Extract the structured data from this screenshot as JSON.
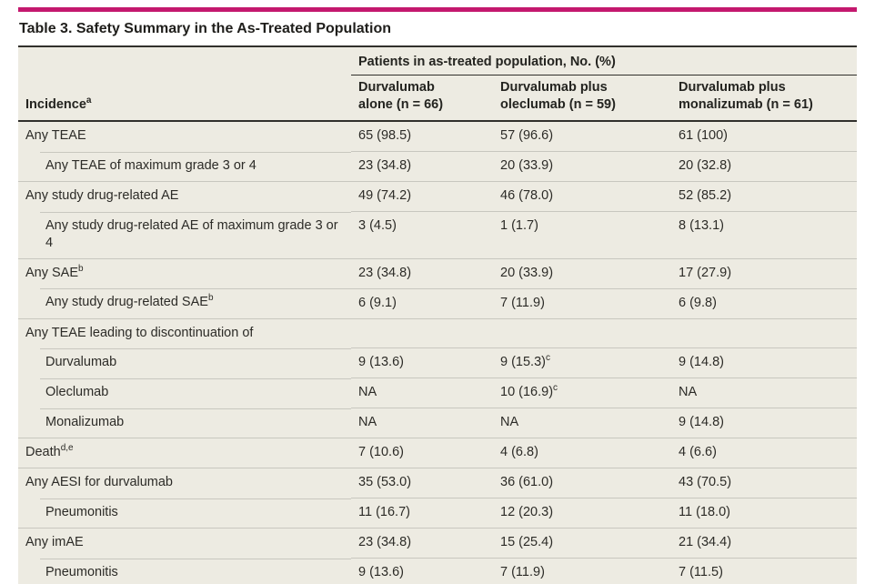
{
  "page": {
    "accent_color": "#C4186E",
    "title": "Table 3. Safety Summary in the As-Treated Population"
  },
  "table": {
    "spanning_header": "Patients in as-treated population, No. (%)",
    "stub_header": {
      "label": "Incidence",
      "sup": "a"
    },
    "columns": [
      {
        "lines": [
          "Durvalumab",
          "alone (n = 66)"
        ]
      },
      {
        "lines": [
          "Durvalumab plus",
          "oleclumab (n = 59)"
        ]
      },
      {
        "lines": [
          "Durvalumab plus",
          "monalizumab (n = 61)"
        ]
      }
    ],
    "rows": [
      {
        "label": "Any TEAE",
        "sup": "",
        "indent": false,
        "values": [
          {
            "text": "65 (98.5)",
            "sup": ""
          },
          {
            "text": "57 (96.6)",
            "sup": ""
          },
          {
            "text": "61 (100)",
            "sup": ""
          }
        ]
      },
      {
        "label": "Any TEAE of maximum grade 3 or 4",
        "sup": "",
        "indent": true,
        "values": [
          {
            "text": "23 (34.8)",
            "sup": ""
          },
          {
            "text": "20 (33.9)",
            "sup": ""
          },
          {
            "text": "20 (32.8)",
            "sup": ""
          }
        ]
      },
      {
        "label": "Any study drug-related AE",
        "sup": "",
        "indent": false,
        "values": [
          {
            "text": "49 (74.2)",
            "sup": ""
          },
          {
            "text": "46 (78.0)",
            "sup": ""
          },
          {
            "text": "52 (85.2)",
            "sup": ""
          }
        ]
      },
      {
        "label": "Any study drug-related AE of maximum grade 3 or 4",
        "sup": "",
        "indent": true,
        "values": [
          {
            "text": "3 (4.5)",
            "sup": ""
          },
          {
            "text": "1 (1.7)",
            "sup": ""
          },
          {
            "text": "8 (13.1)",
            "sup": ""
          }
        ]
      },
      {
        "label": "Any SAE",
        "sup": "b",
        "indent": false,
        "values": [
          {
            "text": "23 (34.8)",
            "sup": ""
          },
          {
            "text": "20 (33.9)",
            "sup": ""
          },
          {
            "text": "17 (27.9)",
            "sup": ""
          }
        ]
      },
      {
        "label": "Any study drug-related SAE",
        "sup": "b",
        "indent": true,
        "values": [
          {
            "text": "6 (9.1)",
            "sup": ""
          },
          {
            "text": "7 (11.9)",
            "sup": ""
          },
          {
            "text": "6 (9.8)",
            "sup": ""
          }
        ]
      },
      {
        "label": "Any TEAE leading to discontinuation of",
        "sup": "",
        "indent": false,
        "values": [
          {
            "text": "",
            "sup": ""
          },
          {
            "text": "",
            "sup": ""
          },
          {
            "text": "",
            "sup": ""
          }
        ]
      },
      {
        "label": "Durvalumab",
        "sup": "",
        "indent": true,
        "values": [
          {
            "text": "9 (13.6)",
            "sup": ""
          },
          {
            "text": "9 (15.3)",
            "sup": "c"
          },
          {
            "text": "9 (14.8)",
            "sup": ""
          }
        ]
      },
      {
        "label": "Oleclumab",
        "sup": "",
        "indent": true,
        "values": [
          {
            "text": "NA",
            "sup": ""
          },
          {
            "text": "10 (16.9)",
            "sup": "c"
          },
          {
            "text": "NA",
            "sup": ""
          }
        ]
      },
      {
        "label": "Monalizumab",
        "sup": "",
        "indent": true,
        "values": [
          {
            "text": "NA",
            "sup": ""
          },
          {
            "text": "NA",
            "sup": ""
          },
          {
            "text": "9 (14.8)",
            "sup": ""
          }
        ]
      },
      {
        "label": "Death",
        "sup": "d,e",
        "indent": false,
        "values": [
          {
            "text": "7 (10.6)",
            "sup": ""
          },
          {
            "text": "4 (6.8)",
            "sup": ""
          },
          {
            "text": "4 (6.6)",
            "sup": ""
          }
        ]
      },
      {
        "label": "Any AESI for durvalumab",
        "sup": "",
        "indent": false,
        "values": [
          {
            "text": "35 (53.0)",
            "sup": ""
          },
          {
            "text": "36 (61.0)",
            "sup": ""
          },
          {
            "text": "43 (70.5)",
            "sup": ""
          }
        ]
      },
      {
        "label": "Pneumonitis",
        "sup": "",
        "indent": true,
        "values": [
          {
            "text": "11 (16.7)",
            "sup": ""
          },
          {
            "text": "12 (20.3)",
            "sup": ""
          },
          {
            "text": "11 (18.0)",
            "sup": ""
          }
        ]
      },
      {
        "label": "Any imAE",
        "sup": "",
        "indent": false,
        "values": [
          {
            "text": "23 (34.8)",
            "sup": ""
          },
          {
            "text": "15 (25.4)",
            "sup": ""
          },
          {
            "text": "21 (34.4)",
            "sup": ""
          }
        ]
      },
      {
        "label": "Pneumonitis",
        "sup": "",
        "indent": true,
        "values": [
          {
            "text": "9 (13.6)",
            "sup": ""
          },
          {
            "text": "7 (11.9)",
            "sup": ""
          },
          {
            "text": "7 (11.5)",
            "sup": ""
          }
        ]
      }
    ]
  }
}
